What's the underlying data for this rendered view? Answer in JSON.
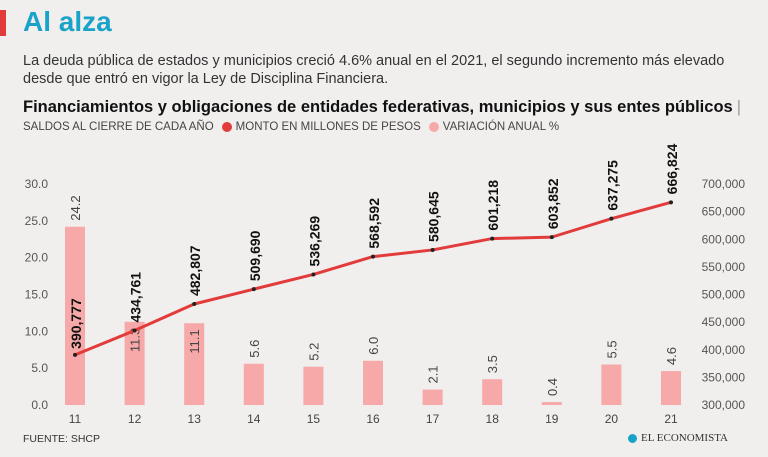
{
  "header": {
    "headline": "Al alza",
    "subtitle": "La deuda pública de estados y municipios creció 4.6% anual en el 2021, el segundo incremento más elevado desde que entró en vigor la Ley de Disciplina Financiera."
  },
  "chart_title": "Financiamientos y obligaciones de entidades federativas, municipios y sus entes públicos",
  "chart_title_sep": "|",
  "legend": {
    "label": "SALDOS AL CIERRE DE CADA AÑO",
    "line_label": "MONTO EN MILLONES DE PESOS",
    "bar_label": "VARIACIÓN ANUAL %"
  },
  "chart_data": {
    "type": "bar+line",
    "categories": [
      "11",
      "12",
      "13",
      "14",
      "15",
      "16",
      "17",
      "18",
      "19",
      "20",
      "21"
    ],
    "series": [
      {
        "name": "VARIACIÓN ANUAL %",
        "type": "bar",
        "axis": "left",
        "values": [
          24.2,
          11.3,
          11.1,
          5.6,
          5.2,
          6.0,
          2.1,
          3.5,
          0.4,
          5.5,
          4.6
        ],
        "labels": [
          "24.2",
          "11.3",
          "11.1",
          "5.6",
          "5.2",
          "6.0",
          "2.1",
          "3.5",
          "0.4",
          "5.5",
          "4.6"
        ],
        "color": "#f7a8a8"
      },
      {
        "name": "MONTO EN MILLONES DE PESOS",
        "type": "line",
        "axis": "right",
        "values": [
          390777,
          434761,
          482807,
          509690,
          536269,
          568592,
          580645,
          601218,
          603852,
          637275,
          666824
        ],
        "labels": [
          "390,777",
          "434,761",
          "482,807",
          "509,690",
          "536,269",
          "568,592",
          "580,645",
          "601,218",
          "603,852",
          "637,275",
          "666,824"
        ],
        "color": "#e23b3b"
      }
    ],
    "y_left": {
      "range": [
        0,
        30
      ],
      "ticks": [
        "0.0",
        "5.0",
        "10.0",
        "15.0",
        "20.0",
        "25.0",
        "30.0"
      ]
    },
    "y_right": {
      "range": [
        300000,
        700000
      ],
      "ticks": [
        "300,000",
        "350,000",
        "400,000",
        "450,000",
        "500,000",
        "550,000",
        "600,000",
        "650,000",
        "700,000"
      ]
    }
  },
  "colors": {
    "accent": "#1aa3c9",
    "line": "#e23b3b",
    "bar": "#f7a8a8",
    "background": "#f1efee"
  },
  "footer": {
    "source": "FUENTE: SHCP",
    "brand": "EL ECONOMISTA"
  }
}
